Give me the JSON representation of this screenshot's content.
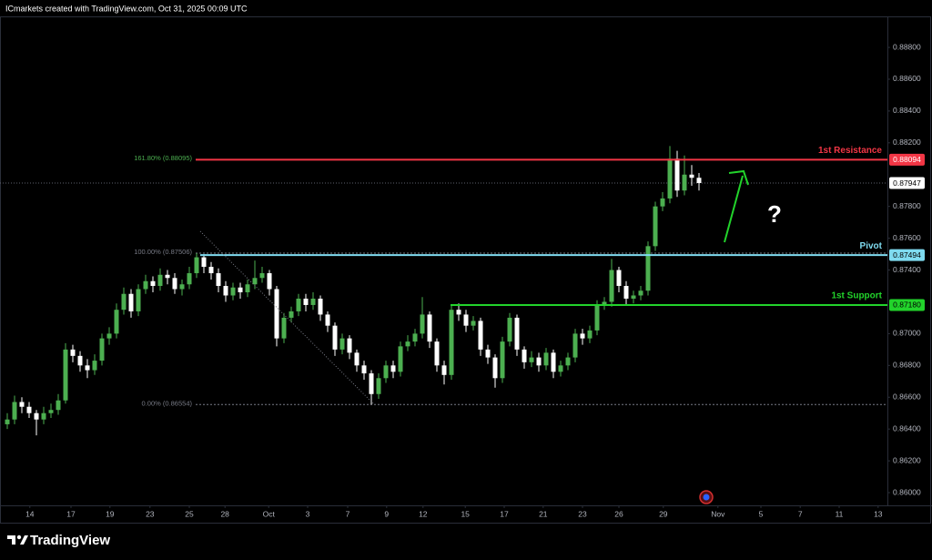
{
  "chart_data": {
    "type": "candlestick",
    "header": "ICmarkets created with TradingView.com, Oct 31, 2025 00:09 UTC",
    "brand": "TradingView",
    "annotation": "?",
    "up_color": "#4caf50",
    "down_color": "#ffffff",
    "grid": false,
    "ylim": [
      0.8592,
      0.88995
    ],
    "yticks": [
      {
        "value": 0.888,
        "label": "0.88800"
      },
      {
        "value": 0.886,
        "label": "0.88600"
      },
      {
        "value": 0.884,
        "label": "0.88400"
      },
      {
        "value": 0.882,
        "label": "0.88200"
      },
      {
        "value": 0.878,
        "label": "0.87800"
      },
      {
        "value": 0.876,
        "label": "0.87600"
      },
      {
        "value": 0.874,
        "label": "0.87400"
      },
      {
        "value": 0.87,
        "label": "0.87000"
      },
      {
        "value": 0.868,
        "label": "0.86800"
      },
      {
        "value": 0.866,
        "label": "0.86600"
      },
      {
        "value": 0.864,
        "label": "0.86400"
      },
      {
        "value": 0.862,
        "label": "0.86200"
      },
      {
        "value": 0.86,
        "label": "0.86000"
      }
    ],
    "xlim": [
      -1,
      120.875
    ],
    "xticks": [
      {
        "value": 3.1,
        "label": "14"
      },
      {
        "value": 8.75,
        "label": "17"
      },
      {
        "value": 14.1,
        "label": "19"
      },
      {
        "value": 19.6,
        "label": "23"
      },
      {
        "value": 25,
        "label": "25"
      },
      {
        "value": 29.9,
        "label": "28"
      },
      {
        "value": 35.9,
        "label": "Oct"
      },
      {
        "value": 41.25,
        "label": "3"
      },
      {
        "value": 46.75,
        "label": "7"
      },
      {
        "value": 52.1,
        "label": "9"
      },
      {
        "value": 57.1,
        "label": "12"
      },
      {
        "value": 62.9,
        "label": "15"
      },
      {
        "value": 68.25,
        "label": "17"
      },
      {
        "value": 73.6,
        "label": "21"
      },
      {
        "value": 79,
        "label": "23"
      },
      {
        "value": 84,
        "label": "26"
      },
      {
        "value": 90.1,
        "label": "29"
      },
      {
        "value": 97.6,
        "label": "Nov"
      },
      {
        "value": 103.5,
        "label": "5"
      },
      {
        "value": 108.9,
        "label": "7"
      },
      {
        "value": 114.25,
        "label": "11"
      },
      {
        "value": 119.6,
        "label": "13"
      }
    ],
    "current_price": {
      "value": 0.87947,
      "color": "#ffffff"
    },
    "levels": [
      {
        "name": "1st Resistance",
        "value": 0.88094,
        "color": "#f23645"
      },
      {
        "name": "Pivot",
        "value": 0.87494,
        "color": "#7fdbf0"
      },
      {
        "name": "1st Support",
        "value": 0.8718,
        "value_label": "0.87180",
        "color": "#22d32b"
      }
    ],
    "fib_levels": [
      {
        "label": "161.80% (0.88095)",
        "value": 0.88095,
        "color": "#4caf50"
      },
      {
        "label": "100.00% (0.87506)",
        "value": 0.87506,
        "color": "#787b86"
      },
      {
        "label": "0.00% (0.86554)",
        "value": 0.86554,
        "color": "#787b86"
      }
    ],
    "candles": [
      [
        0.8643,
        0.865,
        0.864,
        0.8646
      ],
      [
        0.8646,
        0.8661,
        0.8643,
        0.8657
      ],
      [
        0.8657,
        0.866,
        0.865,
        0.8654
      ],
      [
        0.8654,
        0.8657,
        0.8647,
        0.865
      ],
      [
        0.865,
        0.8652,
        0.8636,
        0.8646
      ],
      [
        0.8646,
        0.8654,
        0.8643,
        0.865
      ],
      [
        0.865,
        0.8656,
        0.8647,
        0.8652
      ],
      [
        0.8652,
        0.8662,
        0.8649,
        0.8658
      ],
      [
        0.8658,
        0.8694,
        0.8656,
        0.869
      ],
      [
        0.869,
        0.8693,
        0.8682,
        0.8686
      ],
      [
        0.8686,
        0.8689,
        0.8676,
        0.868
      ],
      [
        0.868,
        0.8684,
        0.8672,
        0.8677
      ],
      [
        0.8677,
        0.8687,
        0.8674,
        0.8683
      ],
      [
        0.8683,
        0.87,
        0.868,
        0.8697
      ],
      [
        0.8697,
        0.8704,
        0.8693,
        0.87
      ],
      [
        0.87,
        0.8719,
        0.8697,
        0.8715
      ],
      [
        0.8715,
        0.8729,
        0.8712,
        0.8725
      ],
      [
        0.8725,
        0.8728,
        0.871,
        0.8714
      ],
      [
        0.8714,
        0.8731,
        0.8711,
        0.8728
      ],
      [
        0.8728,
        0.8737,
        0.8725,
        0.8733
      ],
      [
        0.8733,
        0.8736,
        0.8726,
        0.873
      ],
      [
        0.873,
        0.8741,
        0.8727,
        0.8737
      ],
      [
        0.8737,
        0.874,
        0.8731,
        0.8735
      ],
      [
        0.8735,
        0.8738,
        0.8725,
        0.8728
      ],
      [
        0.8728,
        0.8734,
        0.8724,
        0.8731
      ],
      [
        0.8731,
        0.8742,
        0.8728,
        0.8738
      ],
      [
        0.8738,
        0.87506,
        0.8735,
        0.8748
      ],
      [
        0.8748,
        0.875,
        0.8738,
        0.8742
      ],
      [
        0.8742,
        0.8745,
        0.8734,
        0.8738
      ],
      [
        0.8738,
        0.8741,
        0.8726,
        0.873
      ],
      [
        0.873,
        0.8733,
        0.872,
        0.8724
      ],
      [
        0.8724,
        0.8732,
        0.8721,
        0.8729
      ],
      [
        0.8729,
        0.8732,
        0.8722,
        0.8726
      ],
      [
        0.8726,
        0.8734,
        0.8723,
        0.8731
      ],
      [
        0.8731,
        0.8746,
        0.8728,
        0.8735
      ],
      [
        0.8735,
        0.8742,
        0.8732,
        0.8738
      ],
      [
        0.8738,
        0.874,
        0.8724,
        0.8728
      ],
      [
        0.8728,
        0.873,
        0.8692,
        0.8697
      ],
      [
        0.8697,
        0.8713,
        0.8694,
        0.871
      ],
      [
        0.871,
        0.8717,
        0.8707,
        0.8714
      ],
      [
        0.8714,
        0.8725,
        0.8711,
        0.8722
      ],
      [
        0.8722,
        0.8725,
        0.8714,
        0.8718
      ],
      [
        0.8718,
        0.8726,
        0.8715,
        0.8722
      ],
      [
        0.8722,
        0.8724,
        0.8708,
        0.8712
      ],
      [
        0.8712,
        0.8714,
        0.8701,
        0.8705
      ],
      [
        0.8705,
        0.8707,
        0.8686,
        0.869
      ],
      [
        0.869,
        0.87,
        0.8687,
        0.8697
      ],
      [
        0.8697,
        0.8699,
        0.8684,
        0.8688
      ],
      [
        0.8688,
        0.869,
        0.8676,
        0.868
      ],
      [
        0.868,
        0.8683,
        0.8671,
        0.8675
      ],
      [
        0.8675,
        0.8677,
        0.86554,
        0.8662
      ],
      [
        0.8662,
        0.8675,
        0.8659,
        0.8672
      ],
      [
        0.8672,
        0.8683,
        0.8669,
        0.868
      ],
      [
        0.868,
        0.8683,
        0.8672,
        0.8676
      ],
      [
        0.8676,
        0.8695,
        0.8673,
        0.8692
      ],
      [
        0.8692,
        0.8699,
        0.8689,
        0.8695
      ],
      [
        0.8695,
        0.8703,
        0.8692,
        0.87
      ],
      [
        0.87,
        0.8723,
        0.8697,
        0.8712
      ],
      [
        0.8712,
        0.8714,
        0.8691,
        0.8695
      ],
      [
        0.8695,
        0.8697,
        0.8676,
        0.868
      ],
      [
        0.868,
        0.8683,
        0.8668,
        0.8674
      ],
      [
        0.8674,
        0.8718,
        0.8671,
        0.8715
      ],
      [
        0.8715,
        0.8719,
        0.8708,
        0.8712
      ],
      [
        0.8712,
        0.8715,
        0.8701,
        0.8705
      ],
      [
        0.8705,
        0.8711,
        0.8702,
        0.8708
      ],
      [
        0.8708,
        0.871,
        0.8686,
        0.869
      ],
      [
        0.869,
        0.8693,
        0.8681,
        0.8685
      ],
      [
        0.8685,
        0.8687,
        0.8666,
        0.8672
      ],
      [
        0.8672,
        0.8698,
        0.8669,
        0.8695
      ],
      [
        0.8695,
        0.8713,
        0.8692,
        0.871
      ],
      [
        0.871,
        0.8712,
        0.8686,
        0.869
      ],
      [
        0.869,
        0.8692,
        0.8678,
        0.8682
      ],
      [
        0.8682,
        0.8689,
        0.8679,
        0.8685
      ],
      [
        0.8685,
        0.8688,
        0.8676,
        0.868
      ],
      [
        0.868,
        0.8691,
        0.8677,
        0.8688
      ],
      [
        0.8688,
        0.869,
        0.8672,
        0.8676
      ],
      [
        0.8676,
        0.8683,
        0.8673,
        0.868
      ],
      [
        0.868,
        0.8688,
        0.8677,
        0.8685
      ],
      [
        0.8685,
        0.8703,
        0.8682,
        0.87
      ],
      [
        0.87,
        0.8703,
        0.8693,
        0.8697
      ],
      [
        0.8697,
        0.8705,
        0.8694,
        0.8702
      ],
      [
        0.8702,
        0.8721,
        0.8699,
        0.8718
      ],
      [
        0.8718,
        0.8723,
        0.8715,
        0.872
      ],
      [
        0.872,
        0.8747,
        0.8717,
        0.874
      ],
      [
        0.874,
        0.8742,
        0.8726,
        0.873
      ],
      [
        0.873,
        0.8733,
        0.8718,
        0.8722
      ],
      [
        0.8722,
        0.8727,
        0.8719,
        0.8724
      ],
      [
        0.8724,
        0.873,
        0.8721,
        0.8727
      ],
      [
        0.8727,
        0.8758,
        0.8724,
        0.8755
      ],
      [
        0.8755,
        0.8783,
        0.8752,
        0.878
      ],
      [
        0.878,
        0.8789,
        0.8777,
        0.8785
      ],
      [
        0.8785,
        0.8818,
        0.8782,
        0.881
      ],
      [
        0.881,
        0.8815,
        0.8786,
        0.879
      ],
      [
        0.879,
        0.8812,
        0.8787,
        0.88
      ],
      [
        0.88,
        0.8806,
        0.8793,
        0.8798
      ],
      [
        0.8798,
        0.8801,
        0.879,
        0.87947
      ]
    ]
  }
}
